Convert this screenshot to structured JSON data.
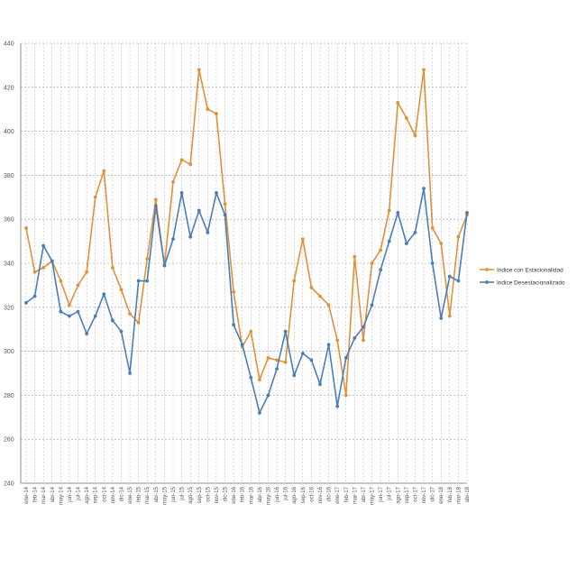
{
  "chart_data": {
    "type": "line",
    "title": "",
    "xlabel": "",
    "ylabel": "",
    "ylim": [
      240,
      440
    ],
    "yticks": [
      240,
      260,
      280,
      300,
      320,
      340,
      360,
      380,
      400,
      420,
      440
    ],
    "grid": "on (dashed, both axes)",
    "legend_position": "right",
    "categories": [
      "ene-14",
      "feb-14",
      "mar-14",
      "abr-14",
      "may-14",
      "jun-14",
      "jul-14",
      "ago-14",
      "sep-14",
      "oct-14",
      "nov-14",
      "dic-14",
      "ene-15",
      "feb-15",
      "mar-15",
      "abr-15",
      "may-15",
      "jun-15",
      "jul-15",
      "ago-15",
      "sep-15",
      "oct-15",
      "nov-15",
      "dic-15",
      "ene-16",
      "feb-16",
      "mar-16",
      "abr-16",
      "may-16",
      "jun-16",
      "jul-16",
      "ago-16",
      "sep-16",
      "oct-16",
      "nov-16",
      "dic-16",
      "ene-17",
      "feb-17",
      "mar-17",
      "abr-17",
      "may-17",
      "jun-17",
      "jul-17",
      "ago-17",
      "sep-17",
      "oct-17",
      "nov-17",
      "dic-17",
      "ene-18",
      "feb-18",
      "mar-18",
      "abr-18"
    ],
    "series": [
      {
        "name": "Indice con Estacionalidad",
        "color": "#E0913A",
        "values": [
          356,
          336,
          338,
          341,
          332,
          321,
          330,
          336,
          370,
          382,
          338,
          328,
          317,
          313,
          342,
          369,
          339,
          377,
          387,
          385,
          428,
          410,
          408,
          367,
          327,
          302,
          309,
          287,
          297,
          296,
          295,
          332,
          351,
          329,
          325,
          321,
          305,
          280,
          343,
          305,
          340,
          346,
          364,
          413,
          406,
          398,
          428,
          356,
          349,
          316,
          352,
          362
        ]
      },
      {
        "name": "Indice Desestacionalizado",
        "color": "#4A7EBB",
        "values": [
          322,
          325,
          348,
          341,
          318,
          316,
          318,
          308,
          316,
          326,
          314,
          309,
          290,
          332,
          332,
          366,
          339,
          351,
          372,
          352,
          364,
          354,
          372,
          362,
          312,
          303,
          288,
          272,
          280,
          292,
          309,
          289,
          299,
          296,
          285,
          303,
          275,
          297,
          306,
          311,
          321,
          337,
          350,
          363,
          349,
          354,
          374,
          340,
          315,
          334,
          332,
          363
        ]
      }
    ]
  }
}
